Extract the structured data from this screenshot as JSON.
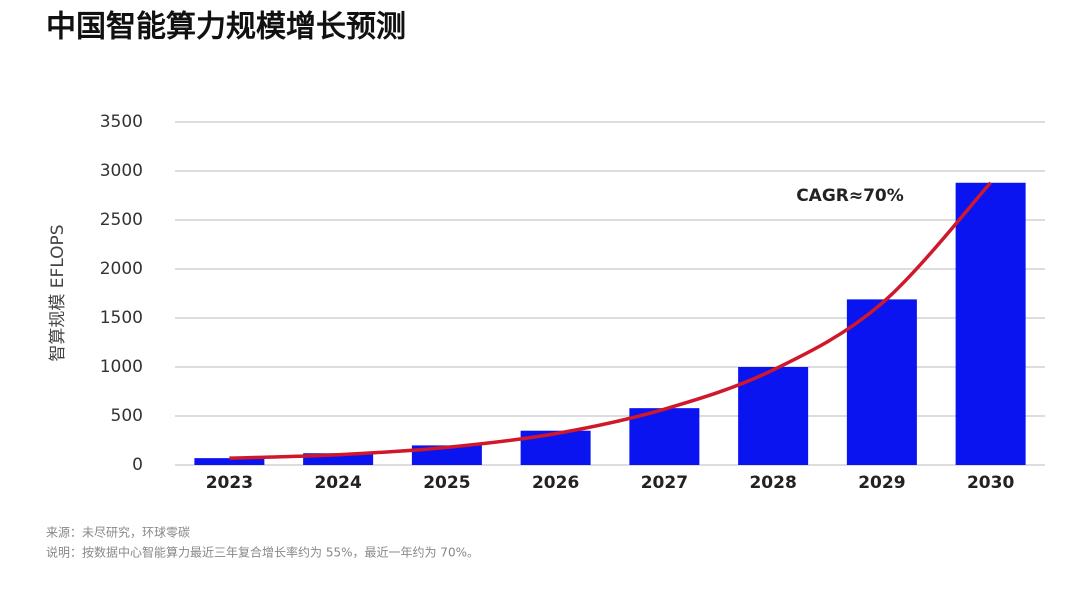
{
  "chart_data": {
    "type": "bar",
    "title": "中国智能算力规模增长预测",
    "y_label": "智算规模 EFLOPS",
    "categories": [
      "2023",
      "2024",
      "2025",
      "2026",
      "2027",
      "2028",
      "2029",
      "2030"
    ],
    "series": [
      {
        "type": "bar",
        "color": "#0a14f0",
        "values": [
          70,
          120,
          200,
          350,
          580,
          1000,
          1690,
          2880
        ]
      },
      {
        "type": "line",
        "color": "#d0182a",
        "values": [
          70,
          105,
          180,
          320,
          570,
          970,
          1650,
          2880
        ]
      }
    ],
    "ylim": [
      0,
      3500
    ],
    "yticks": [
      0,
      500,
      1000,
      1500,
      2000,
      2500,
      3000,
      3500
    ],
    "grid": true,
    "annotation": "CAGR≈70%",
    "source": "来源：未尽研究，环球零碳",
    "note": "说明：按数据中心智能算力最近三年复合增长率约为 55%，最近一年约为 70%。"
  }
}
